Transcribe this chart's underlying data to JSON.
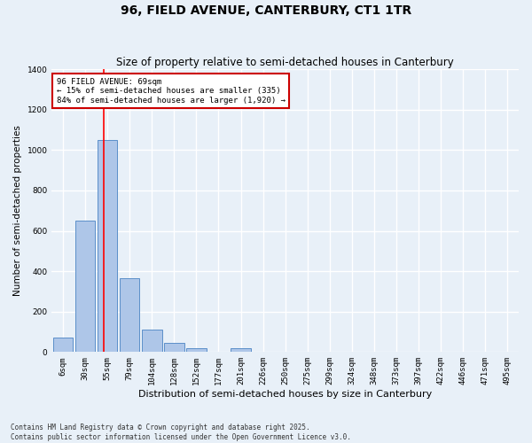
{
  "title": "96, FIELD AVENUE, CANTERBURY, CT1 1TR",
  "subtitle": "Size of property relative to semi-detached houses in Canterbury",
  "xlabel": "Distribution of semi-detached houses by size in Canterbury",
  "ylabel": "Number of semi-detached properties",
  "categories": [
    "6sqm",
    "30sqm",
    "55sqm",
    "79sqm",
    "104sqm",
    "128sqm",
    "152sqm",
    "177sqm",
    "201sqm",
    "226sqm",
    "250sqm",
    "275sqm",
    "299sqm",
    "324sqm",
    "348sqm",
    "373sqm",
    "397sqm",
    "422sqm",
    "446sqm",
    "471sqm",
    "495sqm"
  ],
  "values": [
    70,
    650,
    1050,
    365,
    110,
    45,
    20,
    0,
    20,
    0,
    0,
    0,
    0,
    0,
    0,
    0,
    0,
    0,
    0,
    0,
    0
  ],
  "bar_color": "#aec6e8",
  "bar_edge_color": "#5b8fc9",
  "property_line_x": 1.85,
  "annotation_text": "96 FIELD AVENUE: 69sqm\n← 15% of semi-detached houses are smaller (335)\n84% of semi-detached houses are larger (1,920) →",
  "annotation_box_color": "#ffffff",
  "annotation_box_edge_color": "#cc0000",
  "ylim": [
    0,
    1400
  ],
  "yticks": [
    0,
    200,
    400,
    600,
    800,
    1000,
    1200,
    1400
  ],
  "background_color": "#e8f0f8",
  "grid_color": "#ffffff",
  "footer_line1": "Contains HM Land Registry data © Crown copyright and database right 2025.",
  "footer_line2": "Contains public sector information licensed under the Open Government Licence v3.0.",
  "title_fontsize": 10,
  "subtitle_fontsize": 8.5,
  "xlabel_fontsize": 8,
  "ylabel_fontsize": 7.5,
  "tick_fontsize": 6.5,
  "footer_fontsize": 5.5,
  "annot_fontsize": 6.5
}
